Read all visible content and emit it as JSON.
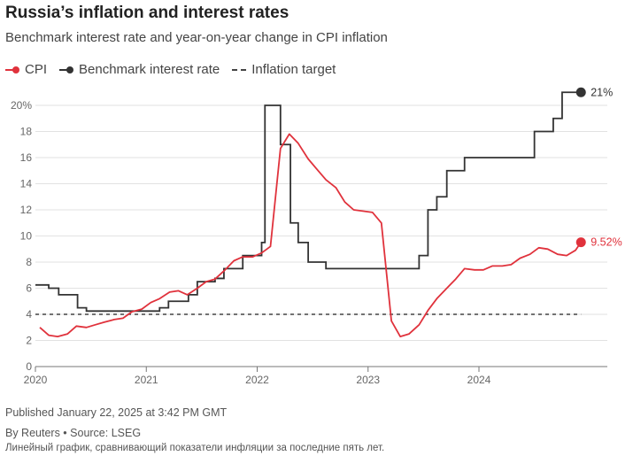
{
  "title": "Russia’s inflation and interest rates",
  "subtitle": "Benchmark interest rate and year-on-year change in CPI inflation",
  "legend": {
    "cpi": "CPI",
    "rate": "Benchmark interest rate",
    "target": "Inflation target"
  },
  "colors": {
    "cpi": "#e0323c",
    "rate": "#333333",
    "target": "#444444",
    "grid": "#e2e2e2",
    "axis": "#777777"
  },
  "footer": {
    "published": "Published January 22, 2025 at 3:42 PM GMT",
    "credit": "By Reuters • Source: LSEG",
    "alt": "Линейный график, сравнивающий показатели инфляции за последние пять лет."
  },
  "chart_data": {
    "type": "line",
    "title": "Russia’s inflation and interest rates",
    "xlabel": "",
    "ylabel": "",
    "xlim": [
      2020.0,
      2024.95
    ],
    "ylim": [
      0,
      20
    ],
    "y_ticks": [
      0,
      2,
      4,
      6,
      8,
      10,
      12,
      14,
      16,
      18,
      20
    ],
    "y_tick_labels": [
      "0",
      "2",
      "4",
      "6",
      "8",
      "10",
      "12",
      "14",
      "16",
      "18",
      "20%"
    ],
    "x_ticks": [
      2020,
      2021,
      2022,
      2023,
      2024
    ],
    "x_tick_labels": [
      "2020",
      "2021",
      "2022",
      "2023",
      "2024"
    ],
    "grid": true,
    "legend_position": "top-left",
    "series": [
      {
        "name": "CPI",
        "style": "line",
        "end_label": "9.52%",
        "points": [
          [
            2020.04,
            3.0
          ],
          [
            2020.12,
            2.4
          ],
          [
            2020.2,
            2.3
          ],
          [
            2020.29,
            2.5
          ],
          [
            2020.37,
            3.1
          ],
          [
            2020.46,
            3.0
          ],
          [
            2020.54,
            3.2
          ],
          [
            2020.62,
            3.4
          ],
          [
            2020.71,
            3.6
          ],
          [
            2020.79,
            3.7
          ],
          [
            2020.87,
            4.2
          ],
          [
            2020.96,
            4.4
          ],
          [
            2021.04,
            4.9
          ],
          [
            2021.12,
            5.2
          ],
          [
            2021.21,
            5.7
          ],
          [
            2021.29,
            5.8
          ],
          [
            2021.37,
            5.5
          ],
          [
            2021.46,
            6.0
          ],
          [
            2021.54,
            6.5
          ],
          [
            2021.62,
            6.7
          ],
          [
            2021.71,
            7.4
          ],
          [
            2021.79,
            8.1
          ],
          [
            2021.87,
            8.4
          ],
          [
            2021.96,
            8.4
          ],
          [
            2022.04,
            8.7
          ],
          [
            2022.12,
            9.2
          ],
          [
            2022.21,
            16.7
          ],
          [
            2022.29,
            17.8
          ],
          [
            2022.37,
            17.1
          ],
          [
            2022.46,
            15.9
          ],
          [
            2022.54,
            15.1
          ],
          [
            2022.62,
            14.3
          ],
          [
            2022.71,
            13.7
          ],
          [
            2022.79,
            12.6
          ],
          [
            2022.87,
            12.0
          ],
          [
            2022.96,
            11.9
          ],
          [
            2023.04,
            11.8
          ],
          [
            2023.12,
            11.0
          ],
          [
            2023.21,
            3.5
          ],
          [
            2023.29,
            2.3
          ],
          [
            2023.37,
            2.5
          ],
          [
            2023.46,
            3.2
          ],
          [
            2023.54,
            4.3
          ],
          [
            2023.62,
            5.2
          ],
          [
            2023.71,
            6.0
          ],
          [
            2023.79,
            6.7
          ],
          [
            2023.87,
            7.5
          ],
          [
            2023.96,
            7.4
          ],
          [
            2024.04,
            7.4
          ],
          [
            2024.12,
            7.7
          ],
          [
            2024.21,
            7.7
          ],
          [
            2024.29,
            7.8
          ],
          [
            2024.37,
            8.3
          ],
          [
            2024.46,
            8.6
          ],
          [
            2024.54,
            9.1
          ],
          [
            2024.62,
            9.0
          ],
          [
            2024.71,
            8.6
          ],
          [
            2024.79,
            8.5
          ],
          [
            2024.87,
            8.9
          ],
          [
            2024.92,
            9.52
          ]
        ]
      },
      {
        "name": "Benchmark interest rate",
        "style": "step",
        "end_label": "21%",
        "points": [
          [
            2020.0,
            6.25
          ],
          [
            2020.12,
            6.0
          ],
          [
            2020.21,
            5.5
          ],
          [
            2020.38,
            4.5
          ],
          [
            2020.46,
            4.25
          ],
          [
            2021.12,
            4.5
          ],
          [
            2021.2,
            5.0
          ],
          [
            2021.38,
            5.5
          ],
          [
            2021.46,
            6.5
          ],
          [
            2021.62,
            6.75
          ],
          [
            2021.7,
            7.5
          ],
          [
            2021.87,
            8.5
          ],
          [
            2022.04,
            9.5
          ],
          [
            2022.07,
            20.0
          ],
          [
            2022.21,
            17.0
          ],
          [
            2022.3,
            14.0
          ],
          [
            2022.3,
            11.0
          ],
          [
            2022.37,
            9.5
          ],
          [
            2022.46,
            8.0
          ],
          [
            2022.62,
            7.5
          ],
          [
            2023.46,
            8.5
          ],
          [
            2023.54,
            12.0
          ],
          [
            2023.62,
            13.0
          ],
          [
            2023.71,
            15.0
          ],
          [
            2023.87,
            16.0
          ],
          [
            2024.5,
            18.0
          ],
          [
            2024.67,
            19.0
          ],
          [
            2024.75,
            21.0
          ],
          [
            2024.92,
            21.0
          ]
        ]
      },
      {
        "name": "Inflation target",
        "style": "dashed",
        "points": [
          [
            2020.0,
            4.0
          ],
          [
            2024.92,
            4.0
          ]
        ]
      }
    ]
  }
}
